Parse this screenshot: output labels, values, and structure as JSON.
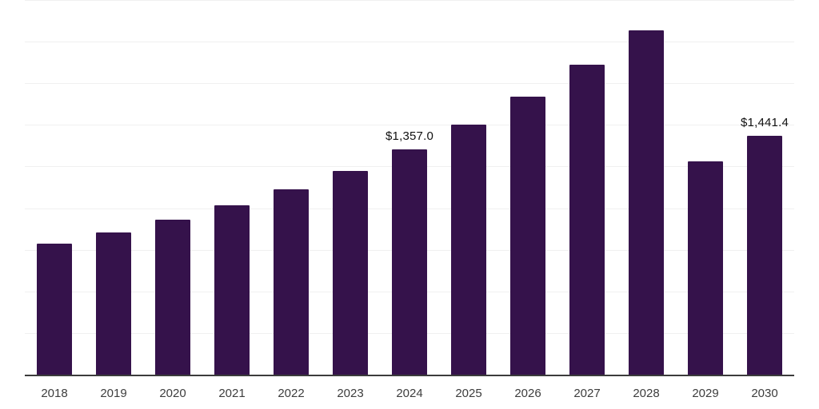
{
  "chart_data": {
    "type": "bar",
    "title": "",
    "categories": [
      "2018",
      "2019",
      "2020",
      "2021",
      "2022",
      "2023",
      "2024",
      "2025",
      "2026",
      "2027",
      "2028",
      "2029",
      "2030"
    ],
    "values": [
      793,
      860,
      937,
      1023,
      1117,
      1227,
      1357.0,
      1508,
      1676,
      1864,
      2073,
      1287,
      1441.4
    ],
    "value_labels": [
      "",
      "",
      "",
      "",
      "",
      "",
      "$1,357.0",
      "",
      "",
      "",
      "",
      "",
      "$1,441.4"
    ],
    "xlabel": "",
    "ylabel": "",
    "ylim": [
      0,
      2250
    ],
    "gridline_step": 250,
    "grid": true,
    "legend_position": "none",
    "y_axis_tick_labels_visible": false,
    "colors": {
      "bar": "#35124b",
      "gridline": "#f0f0f0",
      "axis_line": "#3b3b3b",
      "tick_label": "#3d3d3d",
      "value_label": "#111111",
      "background": "#ffffff"
    }
  }
}
